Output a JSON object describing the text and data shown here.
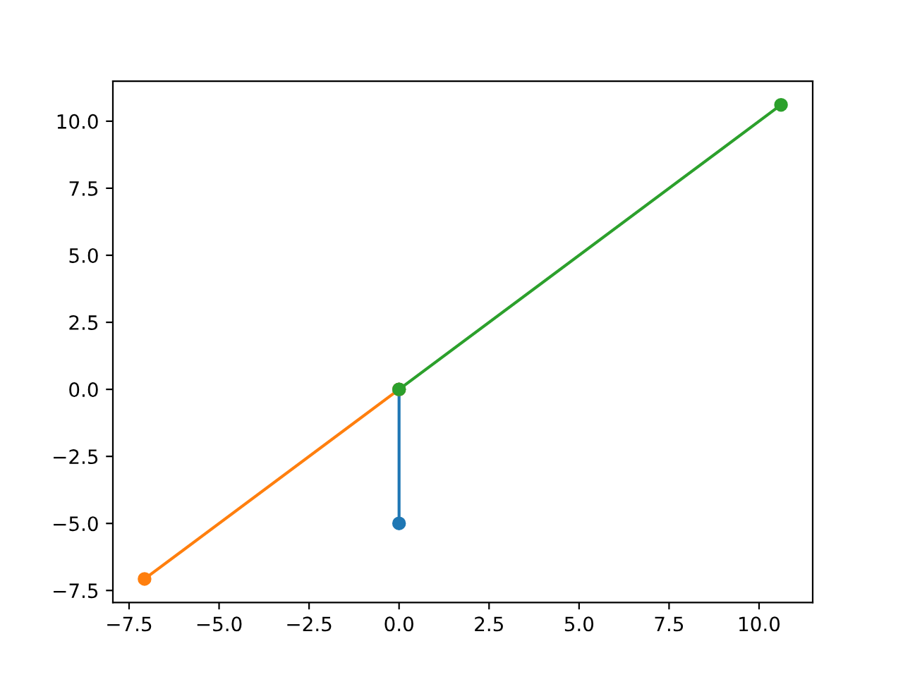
{
  "chart_data": {
    "type": "line",
    "marker": "circle",
    "line_style": "solid",
    "grid": false,
    "legend": false,
    "series": [
      {
        "color": "#1f77b4",
        "x": [
          0,
          0
        ],
        "values": [
          0,
          -5
        ]
      },
      {
        "color": "#ff7f0e",
        "x": [
          0,
          -7.07
        ],
        "values": [
          0,
          -7.07
        ]
      },
      {
        "color": "#2ca02c",
        "x": [
          0,
          10.61
        ],
        "values": [
          0,
          10.61
        ]
      }
    ],
    "xlim": [
      -7.95,
      11.49
    ],
    "ylim": [
      -7.95,
      11.49
    ],
    "xticks": [
      {
        "value": -7.5,
        "label": "−7.5"
      },
      {
        "value": -5,
        "label": "−5.0"
      },
      {
        "value": -2.5,
        "label": "−2.5"
      },
      {
        "value": 0,
        "label": "0.0"
      },
      {
        "value": 2.5,
        "label": "2.5"
      },
      {
        "value": 5,
        "label": "5.0"
      },
      {
        "value": 7.5,
        "label": "7.5"
      },
      {
        "value": 10,
        "label": "10.0"
      }
    ],
    "yticks": [
      {
        "value": -7.5,
        "label": "−7.5"
      },
      {
        "value": -5,
        "label": "−5.0"
      },
      {
        "value": -2.5,
        "label": "−2.5"
      },
      {
        "value": 0,
        "label": "0.0"
      },
      {
        "value": 2.5,
        "label": "2.5"
      },
      {
        "value": 5,
        "label": "5.0"
      },
      {
        "value": 7.5,
        "label": "7.5"
      },
      {
        "value": 10,
        "label": "10.0"
      }
    ]
  }
}
